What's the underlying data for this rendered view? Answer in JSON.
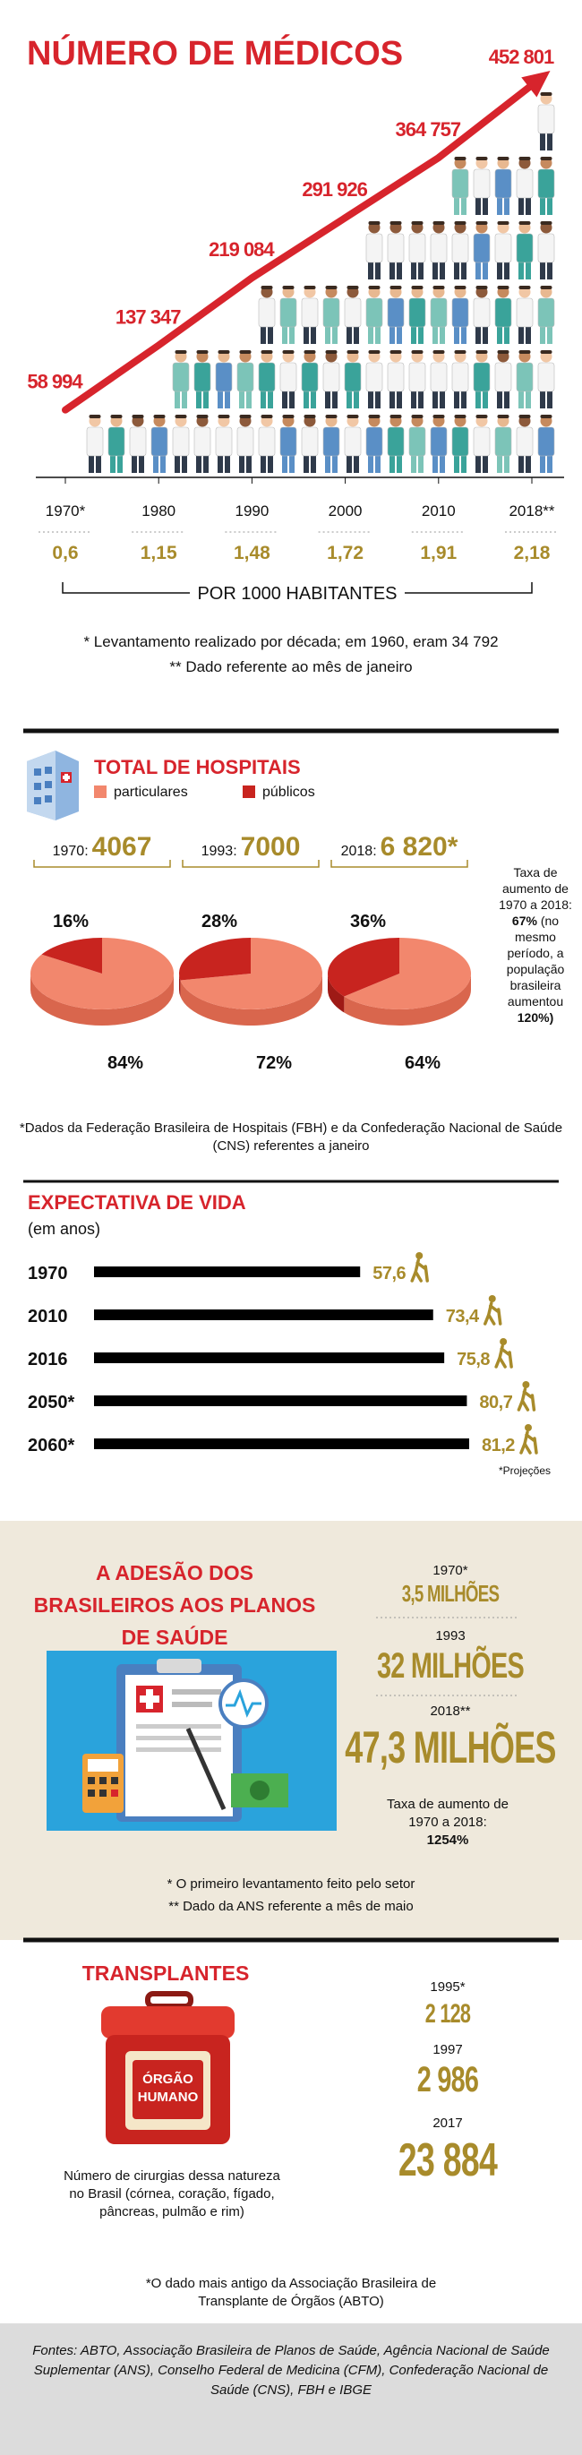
{
  "chart_data": [
    {
      "type": "line",
      "title": "NÚMERO DE MÉDICOS",
      "categories": [
        "1970*",
        "1980",
        "1990",
        "2000",
        "2010",
        "2018**"
      ],
      "values": [
        58994,
        137347,
        219084,
        291926,
        364757,
        452801
      ],
      "value_labels": [
        "58 994",
        "137 347",
        "219 084",
        "291 926",
        "364 757",
        "452 801"
      ],
      "color": "#d7242c",
      "per_1000": {
        "label": "POR 1000 HABITANTES",
        "values": [
          0.6,
          1.15,
          1.48,
          1.72,
          1.91,
          2.18
        ],
        "value_labels": [
          "0,6",
          "1,15",
          "1,48",
          "1,72",
          "1,91",
          "2,18"
        ],
        "color": "#a88b2b"
      },
      "notes": [
        "* Levantamento realizado por década; em 1960, eram 34 792",
        "** Dado referente ao mês de janeiro"
      ]
    },
    {
      "type": "pie",
      "title": "TOTAL DE HOSPITAIS",
      "categories": [
        "1970:",
        "1993:",
        "2018:"
      ],
      "totals": {
        "values": [
          4067,
          7000,
          6820
        ],
        "value_labels": [
          "4067",
          "7000",
          "6 820*"
        ],
        "color": "#a88b2b"
      },
      "series": [
        {
          "name": "particulares",
          "color": "#f2876d",
          "values": [
            84,
            72,
            64
          ],
          "value_labels": [
            "84%",
            "72%",
            "64%"
          ]
        },
        {
          "name": "públicos",
          "color": "#c8241f",
          "values": [
            16,
            28,
            36
          ],
          "value_labels": [
            "16%",
            "28%",
            "36%"
          ]
        }
      ],
      "annotation": {
        "text": "Taxa de aumento de 1970 a 2018:",
        "value": "67%",
        "text2": "(no mesmo período, a população brasileira aumentou",
        "value2": "120%)"
      },
      "note": "*Dados da Federação Brasileira de Hospitais (FBH) e da Confederação Nacional de Saúde (CNS) referentes a janeiro"
    },
    {
      "type": "bar",
      "orientation": "horizontal",
      "title": "EXPECTATIVA DE VIDA",
      "subtitle": "(em anos)",
      "categories": [
        "1970",
        "2010",
        "2016",
        "2050*",
        "2060*"
      ],
      "values": [
        57.6,
        73.4,
        75.8,
        80.7,
        81.2
      ],
      "value_labels": [
        "57,6",
        "73,4",
        "75,8",
        "80,7",
        "81,2"
      ],
      "color": "#000000",
      "label_color": "#a88b2b",
      "note": "*Projeções"
    }
  ],
  "health_plans": {
    "title": "A ADESÃO DOS BRASILEIROS AOS PLANOS DE SAÚDE",
    "entries": [
      {
        "year": "1970*",
        "value": "3,5 MILHÕES"
      },
      {
        "year": "1993",
        "value": "32 MILHÕES"
      },
      {
        "year": "2018**",
        "value": "47,3 MILHÕES"
      }
    ],
    "rate_label": "Taxa de aumento de 1970 a 2018:",
    "rate": "1254%",
    "notes": [
      "* O primeiro levantamento feito pelo setor",
      "** Dado da ANS referente a mês de maio"
    ]
  },
  "transplants": {
    "title": "TRANSPLANTES",
    "box_label": "ÓRGÃO HUMANO",
    "description": "Número de cirurgias dessa natureza no Brasil (córnea, coração, fígado, pâncreas, pulmão e rim)",
    "entries": [
      {
        "year": "1995*",
        "value": "2 128"
      },
      {
        "year": "1997",
        "value": "2 986"
      },
      {
        "year": "2017",
        "value": "23 884"
      }
    ],
    "note": "*O dado mais antigo da Associação Brasileira de Transplante de Órgãos (ABTO)"
  },
  "sources": "Fontes: ABTO, Associação Brasileira de Planos de Saúde, Agência Nacional de Saúde Suplementar (ANS), Conselho Federal de Medicina (CFM), Confederação Nacional de Saúde (CNS), FBH e IBGE"
}
